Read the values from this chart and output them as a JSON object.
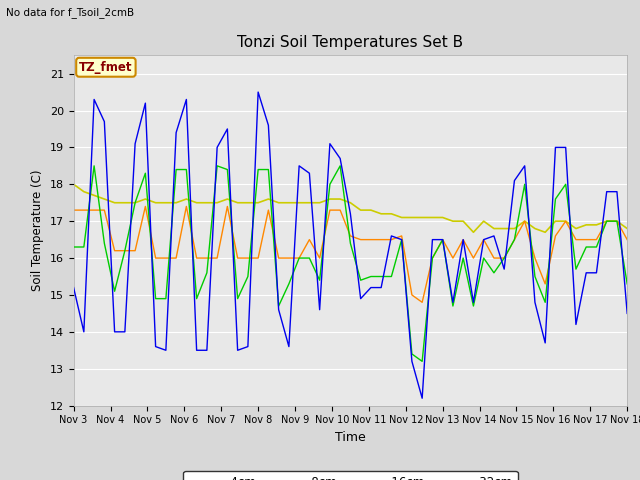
{
  "title": "Tonzi Soil Temperatures Set B",
  "subtitle": "No data for f_Tsoil_2cmB",
  "xlabel": "Time",
  "ylabel": "Soil Temperature (C)",
  "ylim": [
    12.0,
    21.5
  ],
  "yticks": [
    12.0,
    13.0,
    14.0,
    15.0,
    16.0,
    17.0,
    18.0,
    19.0,
    20.0,
    21.0
  ],
  "xtick_labels": [
    "Nov 3",
    "Nov 4",
    "Nov 5",
    "Nov 6",
    "Nov 7",
    "Nov 8",
    "Nov 9",
    "Nov 10",
    "Nov 11",
    "Nov 12",
    "Nov 13",
    "Nov 14",
    "Nov 15",
    "Nov 16",
    "Nov 17",
    "Nov 18"
  ],
  "colors": {
    "4cm": "#0000ee",
    "8cm": "#00cc00",
    "16cm": "#ff8800",
    "32cm": "#cccc00"
  },
  "annotation_box": {
    "text": "TZ_fmet",
    "text_color": "#880000",
    "bg_color": "#ffffcc",
    "edge_color": "#cc8800"
  },
  "fig_bg": "#d8d8d8",
  "plot_bg": "#e8e8e8",
  "grid_color": "#ffffff",
  "t4cm": [
    15.2,
    14.0,
    20.3,
    19.7,
    14.0,
    14.0,
    19.1,
    20.2,
    13.6,
    13.5,
    19.4,
    20.3,
    13.5,
    13.5,
    19.0,
    19.5,
    13.5,
    13.6,
    20.5,
    19.6,
    14.6,
    13.6,
    18.5,
    18.3,
    14.6,
    19.1,
    18.7,
    17.2,
    14.9,
    15.2,
    15.2,
    16.6,
    16.5,
    13.2,
    12.2,
    16.5,
    16.5,
    14.8,
    16.5,
    14.8,
    16.5,
    16.6,
    15.7,
    18.1,
    18.5,
    14.8,
    13.7,
    19.0,
    19.0,
    14.2,
    15.6,
    15.6,
    17.8,
    17.8,
    14.5
  ],
  "t8cm": [
    16.3,
    16.3,
    18.5,
    16.4,
    15.1,
    16.2,
    17.5,
    18.3,
    14.9,
    14.9,
    18.4,
    18.4,
    14.9,
    15.6,
    18.5,
    18.4,
    14.9,
    15.5,
    18.4,
    18.4,
    14.7,
    15.3,
    16.0,
    16.0,
    15.4,
    18.0,
    18.5,
    16.4,
    15.4,
    15.5,
    15.5,
    15.5,
    16.5,
    13.4,
    13.2,
    16.0,
    16.5,
    14.7,
    16.0,
    14.7,
    16.0,
    15.6,
    16.0,
    16.5,
    18.0,
    15.5,
    14.8,
    17.6,
    18.0,
    15.7,
    16.3,
    16.3,
    17.0,
    17.0,
    15.3
  ],
  "t16cm": [
    17.3,
    17.3,
    17.3,
    17.3,
    16.2,
    16.2,
    16.2,
    17.4,
    16.0,
    16.0,
    16.0,
    17.4,
    16.0,
    16.0,
    16.0,
    17.4,
    16.0,
    16.0,
    16.0,
    17.3,
    16.0,
    16.0,
    16.0,
    16.5,
    16.0,
    17.3,
    17.3,
    16.6,
    16.5,
    16.5,
    16.5,
    16.5,
    16.6,
    15.0,
    14.8,
    16.0,
    16.5,
    16.0,
    16.5,
    16.0,
    16.5,
    16.0,
    16.0,
    16.5,
    17.0,
    16.0,
    15.3,
    16.6,
    17.0,
    16.5,
    16.5,
    16.5,
    17.0,
    17.0,
    16.5
  ],
  "t32cm": [
    18.0,
    17.8,
    17.7,
    17.6,
    17.5,
    17.5,
    17.5,
    17.6,
    17.5,
    17.5,
    17.5,
    17.6,
    17.5,
    17.5,
    17.5,
    17.6,
    17.5,
    17.5,
    17.5,
    17.6,
    17.5,
    17.5,
    17.5,
    17.5,
    17.5,
    17.6,
    17.6,
    17.5,
    17.3,
    17.3,
    17.2,
    17.2,
    17.1,
    17.1,
    17.1,
    17.1,
    17.1,
    17.0,
    17.0,
    16.7,
    17.0,
    16.8,
    16.8,
    16.8,
    17.0,
    16.8,
    16.7,
    17.0,
    17.0,
    16.8,
    16.9,
    16.9,
    17.0,
    17.0,
    16.8
  ]
}
